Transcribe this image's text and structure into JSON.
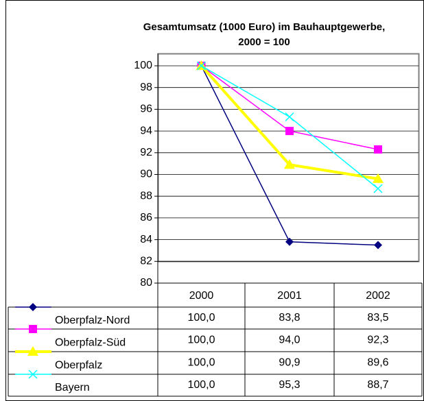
{
  "chart_data": {
    "type": "line",
    "title": [
      "Gesamtumsatz (1000 Euro) im Bauhauptgewerbe,",
      "2000 = 100"
    ],
    "categories": [
      "2000",
      "2001",
      "2002"
    ],
    "series": [
      {
        "name": "Oberpfalz-Nord",
        "color": "#000080",
        "marker": "diamond",
        "values": [
          100,
          83.8,
          83.5
        ],
        "value_labels": [
          "100,0",
          "83,8",
          "83,5"
        ]
      },
      {
        "name": "Oberpfalz-Süd",
        "color": "#ff00ff",
        "marker": "square",
        "values": [
          100,
          94.0,
          92.3
        ],
        "value_labels": [
          "100,0",
          "94,0",
          "92,3"
        ]
      },
      {
        "name": "Oberpfalz",
        "color": "#ffff00",
        "marker": "triangle",
        "values": [
          100,
          90.9,
          89.6
        ],
        "value_labels": [
          "100,0",
          "90,9",
          "89,6"
        ]
      },
      {
        "name": "Bayern",
        "color": "#00ffff",
        "marker": "x",
        "values": [
          100,
          95.3,
          88.7
        ],
        "value_labels": [
          "100,0",
          "95,3",
          "88,7"
        ]
      }
    ],
    "ylim": [
      80,
      100
    ],
    "yticks": [
      80,
      82,
      84,
      86,
      88,
      90,
      92,
      94,
      96,
      98,
      100
    ],
    "grid": true
  }
}
